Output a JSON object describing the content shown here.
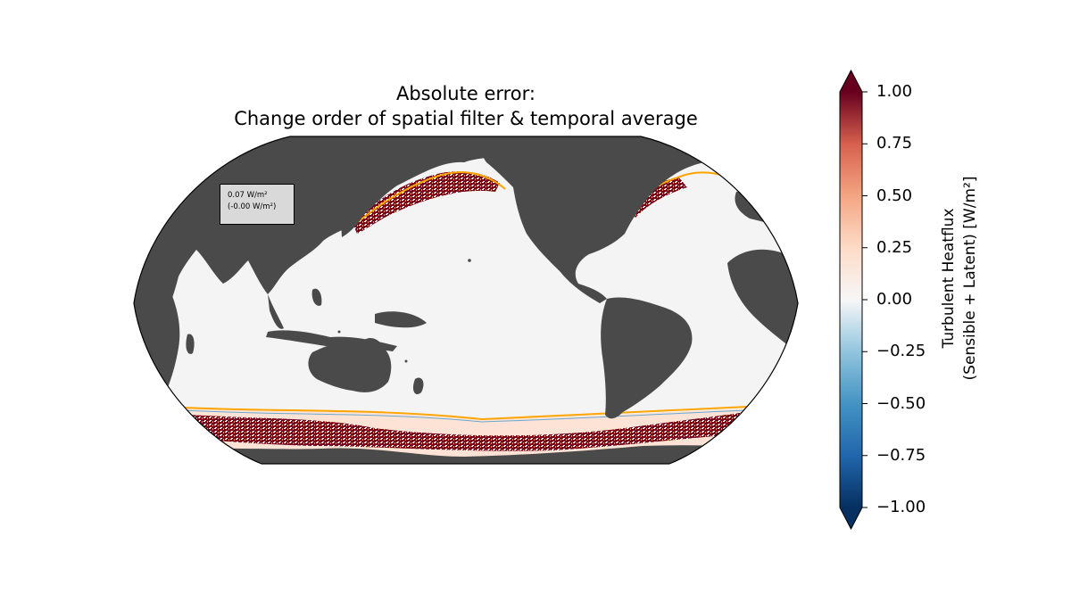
{
  "title": {
    "line1": "Absolute error:",
    "line2": "Change order of spatial filter & temporal average"
  },
  "stats_box": {
    "line1": "0.07 W/m²",
    "line2": "(-0.00 W/m²)"
  },
  "colorbar": {
    "label_line1": "Turbulent Heatflux",
    "label_line2": "(Sensible + Latent) [W/m²]",
    "min": -1.0,
    "max": 1.0,
    "colormap": "RdBu_r",
    "extend": "both",
    "ticks": [
      "1.00",
      "0.75",
      "0.50",
      "0.25",
      "0.00",
      "−0.25",
      "−0.50",
      "−0.75",
      "−1.00"
    ]
  },
  "map": {
    "projection": "Robinson (Pacific-centered)",
    "land_color": "#4a4a4a",
    "ocean_color": "#f4f4f4",
    "contour_color": "#ffa500",
    "positive_color": "#8b0a1f",
    "negative_color": "#1f5fa8"
  }
}
